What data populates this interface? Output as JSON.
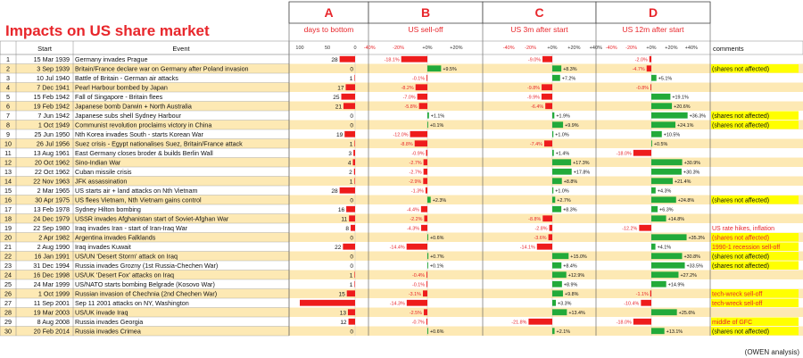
{
  "title": "Impacts on US share market",
  "credit": "(OWEN analysis)",
  "headers": {
    "start": "Start",
    "event": "Event",
    "comments": "comments"
  },
  "sections": [
    {
      "letter": "A",
      "label": "days to bottom",
      "ticks": [
        "100",
        "50",
        "0"
      ]
    },
    {
      "letter": "B",
      "label": "US sell-off",
      "ticks": [
        "-40%",
        "-20%",
        "+0%",
        "+20%"
      ]
    },
    {
      "letter": "C",
      "label": "US 3m after start",
      "ticks": [
        "-40%",
        "-20%",
        "+0%",
        "+20%",
        "+40%"
      ]
    },
    {
      "letter": "D",
      "label": "US 12m after start",
      "ticks": [
        "-40%",
        "-20%",
        "+0%",
        "+20%",
        "+40%"
      ]
    }
  ],
  "colors": {
    "negative": "#ee1c1c",
    "positive": "#22aa3a",
    "band": "#fde9b4",
    "title": "#e8262b",
    "yellow": "#ffff00",
    "redtext": "#e8262b"
  },
  "chart_data": {
    "type": "table",
    "columns": [
      "No",
      "Start",
      "Event",
      "Days to bottom",
      "US sell-off %",
      "US 3m after start %",
      "US 12m after start %",
      "Comments"
    ],
    "rows": [
      {
        "n": "1",
        "date": "15 Mar 1939",
        "event": "Germany invades Prague",
        "days": 28,
        "days_label": "28",
        "selloff": -18.1,
        "selloff_label": "-18.1%",
        "m3": -9.0,
        "m3_label": "-9.0%",
        "m12": -2.0,
        "m12_label": "-2.0%",
        "comment": ""
      },
      {
        "n": "2",
        "date": "3 Sep 1939",
        "event": "Britain/France declare war on Germany after Poland invasion",
        "days": 0,
        "days_label": "0",
        "selloff": 9.5,
        "selloff_label": "+9.5%",
        "m3": 8.3,
        "m3_label": "+8.3%",
        "m12": -4.7,
        "m12_label": "-4.7%",
        "comment": "(shares not affected)"
      },
      {
        "n": "3",
        "date": "10 Jul 1940",
        "event": "Battle of Britain - German air attacks",
        "days": 1,
        "days_label": "1",
        "selloff": -0.1,
        "selloff_label": "-0.1%",
        "m3": 7.2,
        "m3_label": "+7.2%",
        "m12": 5.1,
        "m12_label": "+5.1%",
        "comment": ""
      },
      {
        "n": "4",
        "date": "7 Dec 1941",
        "event": "Pearl Harbour bombed by Japan",
        "days": 17,
        "days_label": "17",
        "selloff": -8.2,
        "selloff_label": "-8.2%",
        "m3": -9.8,
        "m3_label": "-9.8%",
        "m12": -0.8,
        "m12_label": "-0.8%",
        "comment": ""
      },
      {
        "n": "5",
        "date": "15 Feb 1942",
        "event": "Fall of Singapore - Britain flees",
        "days": 25,
        "days_label": "25",
        "selloff": -7.0,
        "selloff_label": "-7.0%",
        "m3": -9.9,
        "m3_label": "-9.9%",
        "m12": 19.1,
        "m12_label": "+19.1%",
        "comment": ""
      },
      {
        "n": "6",
        "date": "19 Feb 1942",
        "event": "Japanese bomb Darwin + North Australia",
        "days": 21,
        "days_label": "21",
        "selloff": -5.8,
        "selloff_label": "-5.8%",
        "m3": -6.4,
        "m3_label": "-6.4%",
        "m12": 20.6,
        "m12_label": "+20.6%",
        "comment": ""
      },
      {
        "n": "7",
        "date": "7 Jun 1942",
        "event": "Japanese subs shell Sydney Harbour",
        "days": 0,
        "days_label": "0",
        "selloff": 1.1,
        "selloff_label": "+1.1%",
        "m3": 1.9,
        "m3_label": "+1.9%",
        "m12": 36.3,
        "m12_label": "+36.3%",
        "comment": "(shares not affected)"
      },
      {
        "n": "8",
        "date": "1 Oct 1949",
        "event": "Communist revolution proclaims victory in China",
        "days": 0,
        "days_label": "0",
        "selloff": 0.1,
        "selloff_label": "+0.1%",
        "m3": 9.9,
        "m3_label": "+9.9%",
        "m12": 24.1,
        "m12_label": "+24.1%",
        "comment": "(shares not affected)"
      },
      {
        "n": "9",
        "date": "25 Jun 1950",
        "event": "Nth Korea invades South - starts Korean War",
        "days": 19,
        "days_label": "19",
        "selloff": -12.0,
        "selloff_label": "-12.0%",
        "m3": 1.0,
        "m3_label": "+1.0%",
        "m12": 10.5,
        "m12_label": "+10.5%",
        "comment": ""
      },
      {
        "n": "10",
        "date": "26 Jul 1956",
        "event": "Suez crisis - Egypt nationalises Suez, Britain/France attack",
        "days": 1,
        "days_label": "1",
        "selloff": -8.8,
        "selloff_label": "-8.8%",
        "m3": -7.4,
        "m3_label": "-7.4%",
        "m12": 0.5,
        "m12_label": "+0.5%",
        "comment": ""
      },
      {
        "n": "11",
        "date": "13 Aug 1961",
        "event": "East Germany closes broder & builds Berlin Wall",
        "days": 3,
        "days_label": "3",
        "selloff": -0.9,
        "selloff_label": "-0.9%",
        "m3": 1.4,
        "m3_label": "+1.4%",
        "m12": -18.0,
        "m12_label": "-18.0%",
        "comment": ""
      },
      {
        "n": "12",
        "date": "20 Oct 1962",
        "event": "Sino-Indian War",
        "days": 4,
        "days_label": "4",
        "selloff": -2.7,
        "selloff_label": "-2.7%",
        "m3": 17.3,
        "m3_label": "+17.3%",
        "m12": 30.9,
        "m12_label": "+30.9%",
        "comment": ""
      },
      {
        "n": "13",
        "date": "22 Oct 1962",
        "event": "Cuban missile crisis",
        "days": 2,
        "days_label": "2",
        "selloff": -2.7,
        "selloff_label": "-2.7%",
        "m3": 17.8,
        "m3_label": "+17.8%",
        "m12": 30.3,
        "m12_label": "+30.3%",
        "comment": ""
      },
      {
        "n": "14",
        "date": "22 Nov 1963",
        "event": "JFK assassination",
        "days": 1,
        "days_label": "1",
        "selloff": -2.9,
        "selloff_label": "-2.9%",
        "m3": 8.8,
        "m3_label": "+8.8%",
        "m12": 21.4,
        "m12_label": "+21.4%",
        "comment": ""
      },
      {
        "n": "15",
        "date": "2 Mar 1965",
        "event": "US starts air + land attacks on Nth Vietnam",
        "days": 28,
        "days_label": "28",
        "selloff": -1.3,
        "selloff_label": "-1.3%",
        "m3": 1.0,
        "m3_label": "+1.0%",
        "m12": 4.3,
        "m12_label": "+4.3%",
        "comment": ""
      },
      {
        "n": "16",
        "date": "30 Apr 1975",
        "event": "US flees Vietnam, Nth Vietnam gains control",
        "days": 0,
        "days_label": "0",
        "selloff": 2.3,
        "selloff_label": "+2.3%",
        "m3": 2.7,
        "m3_label": "+2.7%",
        "m12": 24.8,
        "m12_label": "+24.8%",
        "comment": "(shares not affected)"
      },
      {
        "n": "17",
        "date": "13 Feb 1978",
        "event": "Sydney Hilton bombing",
        "days": 16,
        "days_label": "16",
        "selloff": -4.4,
        "selloff_label": "-4.4%",
        "m3": 8.3,
        "m3_label": "+8.3%",
        "m12": 6.3,
        "m12_label": "+6.3%",
        "comment": ""
      },
      {
        "n": "18",
        "date": "24 Dec 1979",
        "event": "USSR invades Afghanistan start of Soviet-Afghan War",
        "days": 11,
        "days_label": "11",
        "selloff": -2.2,
        "selloff_label": "-2.2%",
        "m3": -8.8,
        "m3_label": "-8.8%",
        "m12": 14.8,
        "m12_label": "+14.8%",
        "comment": ""
      },
      {
        "n": "19",
        "date": "22 Sep 1980",
        "event": "Iraq invades Iran - start of Iran-Iraq War",
        "days": 8,
        "days_label": "8",
        "selloff": -4.3,
        "selloff_label": "-4.3%",
        "m3": -2.8,
        "m3_label": "-2.8%",
        "m12": -12.2,
        "m12_label": "-12.2%",
        "comment": "US rate hikes, inflation"
      },
      {
        "n": "20",
        "date": "2 Apr 1982",
        "event": "Argentina invades Falklands",
        "days": 0,
        "days_label": "0",
        "selloff": 0.6,
        "selloff_label": "+0.6%",
        "m3": -3.6,
        "m3_label": "-3.6%",
        "m12": 35.3,
        "m12_label": "+35.3%",
        "comment": "(shares not affected)"
      },
      {
        "n": "21",
        "date": "2 Aug 1990",
        "event": "Iraq invades Kuwait",
        "days": 22,
        "days_label": "22",
        "selloff": -14.4,
        "selloff_label": "-14.4%",
        "m3": -14.1,
        "m3_label": "-14.1%",
        "m12": 4.1,
        "m12_label": "+4.1%",
        "comment": "1990-1 recession sell-off"
      },
      {
        "n": "22",
        "date": "16 Jan 1991",
        "event": "US/UN 'Desert Storm' attack on Iraq",
        "days": 0,
        "days_label": "0",
        "selloff": 0.7,
        "selloff_label": "+0.7%",
        "m3": 15.0,
        "m3_label": "+15.0%",
        "m12": 30.8,
        "m12_label": "+30.8%",
        "comment": "(shares not affected)"
      },
      {
        "n": "23",
        "date": "31 Dec 1994",
        "event": "Russia invades Grozny (1st Russia-Chechen War)",
        "days": 0,
        "days_label": "0",
        "selloff": 0.1,
        "selloff_label": "+0.1%",
        "m3": 8.4,
        "m3_label": "+8.4%",
        "m12": 33.5,
        "m12_label": "+33.5%",
        "comment": "(shares not affected)"
      },
      {
        "n": "24",
        "date": "16 Dec 1998",
        "event": "US/UK 'Desert Fox' attacks on Iraq",
        "days": 1,
        "days_label": "1",
        "selloff": -0.4,
        "selloff_label": "-0.4%",
        "m3": 12.9,
        "m3_label": "+12.9%",
        "m12": 27.2,
        "m12_label": "+27.2%",
        "comment": ""
      },
      {
        "n": "25",
        "date": "24 Mar 1999",
        "event": "US/NATO starts bombing Belgrade (Kosovo War)",
        "days": 1,
        "days_label": "1",
        "selloff": -0.1,
        "selloff_label": "-0.1%",
        "m3": 8.9,
        "m3_label": "+8.9%",
        "m12": 14.9,
        "m12_label": "+14.9%",
        "comment": ""
      },
      {
        "n": "26",
        "date": "1 Oct 1999",
        "event": "Russian invasion of Chechnia (2nd Chechen War)",
        "days": 15,
        "days_label": "15",
        "selloff": -3.1,
        "selloff_label": "-3.1%",
        "m3": 9.8,
        "m3_label": "+9.8%",
        "m12": -1.1,
        "m12_label": "-1.1%",
        "comment": "tech-wreck sell-off"
      },
      {
        "n": "27",
        "date": "11 Sep 2001",
        "event": "Sep 11 2001 attacks on NY, Washington",
        "days": 100,
        "days_label": "",
        "selloff": -14.3,
        "selloff_label": "-14.3%",
        "m3": 3.3,
        "m3_label": "+3.3%",
        "m12": -10.4,
        "m12_label": "-10.4%",
        "comment": "tech-wreck sell-off"
      },
      {
        "n": "28",
        "date": "19 Mar 2003",
        "event": "US/UK invade Iraq",
        "days": 13,
        "days_label": "13",
        "selloff": -2.5,
        "selloff_label": "-2.5%",
        "m3": 13.4,
        "m3_label": "+13.4%",
        "m12": 25.6,
        "m12_label": "+25.6%",
        "comment": ""
      },
      {
        "n": "29",
        "date": "8 Aug 2008",
        "event": "Russia invades Georgia",
        "days": 12,
        "days_label": "12",
        "selloff": -0.7,
        "selloff_label": "-0.7%",
        "m3": -21.8,
        "m3_label": "-21.8%",
        "m12": -18.0,
        "m12_label": "-18.0%",
        "comment": "middle of GFC"
      },
      {
        "n": "30",
        "date": "20 Feb 2014",
        "event": "Russia invades Crimea",
        "days": 0,
        "days_label": "0",
        "selloff": 0.6,
        "selloff_label": "+0.6%",
        "m3": 2.1,
        "m3_label": "+2.1%",
        "m12": 13.1,
        "m12_label": "+13.1%",
        "comment": "(shares not affected)"
      }
    ]
  }
}
